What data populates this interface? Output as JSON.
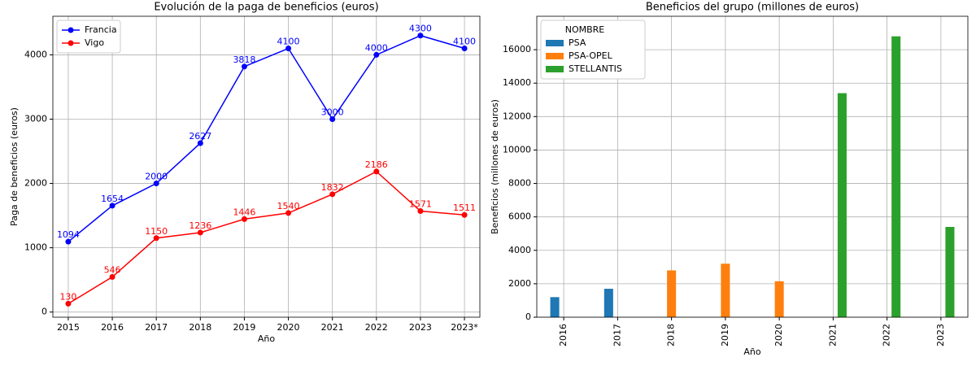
{
  "chart_data": [
    {
      "type": "line",
      "title": "Evolución de la paga de beneficios (euros)",
      "xlabel": "Año",
      "ylabel": "Paga de beneficios (euros)",
      "categories": [
        "2015",
        "2016",
        "2017",
        "2018",
        "2019",
        "2020",
        "2021",
        "2022",
        "2023",
        "2023*"
      ],
      "series": [
        {
          "name": "Francia",
          "color": "#0000ff",
          "values": [
            1094,
            1654,
            2000,
            2627,
            3818,
            4100,
            3000,
            4000,
            4300,
            4100
          ]
        },
        {
          "name": "Vigo",
          "color": "#ff0000",
          "values": [
            130,
            546,
            1150,
            1236,
            1446,
            1540,
            1832,
            2186,
            1571,
            1511
          ]
        }
      ],
      "ylim": [
        -80,
        4600
      ],
      "yticks": [
        0,
        1000,
        2000,
        3000,
        4000
      ],
      "grid": true,
      "legend": "upper left"
    },
    {
      "type": "bar",
      "title": "Beneficios del grupo (millones de euros)",
      "xlabel": "Año",
      "ylabel": "Beneficios (millones de euros)",
      "legend_title": "NOMBRE",
      "categories": [
        "2016",
        "2017",
        "2018",
        "2019",
        "2020",
        "2021",
        "2022",
        "2023"
      ],
      "series": [
        {
          "name": "PSA",
          "color": "#1f77b4",
          "values": [
            1200,
            1700,
            null,
            null,
            null,
            null,
            null,
            null
          ]
        },
        {
          "name": "PSA-OPEL",
          "color": "#ff7f0e",
          "values": [
            null,
            null,
            2800,
            3200,
            2150,
            null,
            null,
            null
          ]
        },
        {
          "name": "STELLANTIS",
          "color": "#2ca02c",
          "values": [
            null,
            null,
            null,
            null,
            null,
            13400,
            16800,
            5400
          ]
        }
      ],
      "ylim": [
        0,
        18000
      ],
      "yticks": [
        0,
        2000,
        4000,
        6000,
        8000,
        10000,
        12000,
        14000,
        16000
      ],
      "grid": true,
      "legend": "upper left"
    }
  ]
}
